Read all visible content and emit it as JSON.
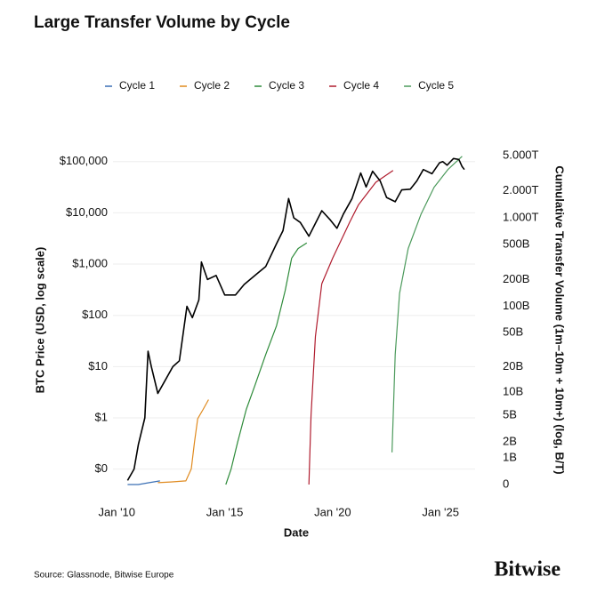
{
  "chart_data": {
    "type": "line",
    "title": "Large Transfer Volume by Cycle",
    "xlabel": "Date",
    "ylabel": "BTC Price (USD, log scale)",
    "y2label": "Cumulative Transfer Volume (1m–10m + 10m+) (log, B/T)",
    "source": "Source: Glassnode, Bitwise Europe",
    "brand": "Bitwise",
    "yscale": "log",
    "y2scale": "log1p",
    "grid": true,
    "legend": "top",
    "xlim": [
      2009,
      2026.6
    ],
    "xticks": [
      {
        "value": 2010,
        "label": "Jan '10"
      },
      {
        "value": 2015,
        "label": "Jan '15"
      },
      {
        "value": 2020,
        "label": "Jan '20"
      },
      {
        "value": 2025,
        "label": "Jan '25"
      }
    ],
    "ylim": [
      0.05,
      160000
    ],
    "yticks": [
      {
        "value": 0.1,
        "label": "$0"
      },
      {
        "value": 1,
        "label": "$1"
      },
      {
        "value": 10,
        "label": "$10"
      },
      {
        "value": 100,
        "label": "$100"
      },
      {
        "value": 1000,
        "label": "$1,000"
      },
      {
        "value": 10000,
        "label": "$10,000"
      },
      {
        "value": 100000,
        "label": "$100,000"
      }
    ],
    "y2lim": [
      0,
      5600
    ],
    "y2ticks": [
      0,
      {
        "value": 1,
        "label": "1B"
      },
      {
        "value": 2,
        "label": "2B"
      },
      {
        "value": 5,
        "label": "5B"
      },
      {
        "value": 10,
        "label": "10B"
      },
      {
        "value": 20,
        "label": "20B"
      },
      {
        "value": 50,
        "label": "50B"
      },
      {
        "value": 100,
        "label": "100B"
      },
      {
        "value": 200,
        "label": "200B"
      },
      {
        "value": 500,
        "label": "500B"
      },
      {
        "value": 1000,
        "label": "1.000T"
      },
      {
        "value": 2000,
        "label": "2.000T"
      },
      {
        "value": 5000,
        "label": "5.000T"
      }
    ],
    "price": {
      "color": "#000000",
      "x": [
        2010.5,
        2010.8,
        2011.0,
        2011.3,
        2011.45,
        2011.6,
        2011.9,
        2012.2,
        2012.6,
        2012.9,
        2013.25,
        2013.5,
        2013.8,
        2013.92,
        2014.2,
        2014.6,
        2015.0,
        2015.5,
        2015.9,
        2016.5,
        2016.9,
        2017.4,
        2017.7,
        2017.96,
        2018.2,
        2018.5,
        2018.9,
        2019.5,
        2019.9,
        2020.2,
        2020.5,
        2020.9,
        2021.3,
        2021.55,
        2021.85,
        2022.2,
        2022.5,
        2022.9,
        2023.2,
        2023.6,
        2023.9,
        2024.2,
        2024.6,
        2024.95,
        2025.1,
        2025.3,
        2025.6,
        2025.85,
        2026.0,
        2026.1
      ],
      "values": [
        0.06,
        0.1,
        0.3,
        1,
        20,
        10,
        3,
        5,
        10,
        13,
        150,
        90,
        200,
        1100,
        500,
        600,
        250,
        250,
        400,
        650,
        900,
        2500,
        4500,
        19000,
        8000,
        6500,
        3500,
        11000,
        7200,
        5000,
        9500,
        19000,
        60000,
        32000,
        65000,
        42000,
        20000,
        16500,
        28000,
        29000,
        42000,
        70000,
        58000,
        95000,
        100000,
        85000,
        115000,
        110000,
        80000,
        70000
      ]
    },
    "series": [
      {
        "name": "Cycle 1",
        "color": "#3a6fb5",
        "axis": "y2",
        "x": [
          2010.5,
          2011.0,
          2011.5,
          2012.0
        ],
        "values": [
          0,
          0,
          0.05,
          0.1
        ]
      },
      {
        "name": "Cycle 2",
        "color": "#e08a1e",
        "axis": "y2",
        "x": [
          2011.9,
          2012.5,
          2013.2,
          2013.45,
          2013.6,
          2013.75,
          2014.0,
          2014.25
        ],
        "values": [
          0.05,
          0.07,
          0.1,
          0.5,
          2,
          4.5,
          6,
          8
        ]
      },
      {
        "name": "Cycle 3",
        "color": "#2e8b3a",
        "axis": "y2",
        "x": [
          2015.05,
          2015.3,
          2015.6,
          2016.0,
          2016.4,
          2016.9,
          2017.4,
          2017.8,
          2018.1,
          2018.4,
          2018.8
        ],
        "values": [
          0,
          0.5,
          2,
          6,
          12,
          28,
          60,
          150,
          350,
          450,
          520
        ]
      },
      {
        "name": "Cycle 4",
        "color": "#b01c2e",
        "axis": "y2",
        "x": [
          2018.9,
          2019.0,
          2019.2,
          2019.5,
          2020.0,
          2020.8,
          2021.2,
          2022.0,
          2022.8
        ],
        "values": [
          0,
          5,
          45,
          180,
          350,
          900,
          1400,
          2500,
          3400
        ]
      },
      {
        "name": "Cycle 5",
        "color": "#4c9a5c",
        "axis": "y2",
        "x": [
          2022.75,
          2022.9,
          2023.1,
          2023.5,
          2024.1,
          2024.7,
          2025.35,
          2026.0
        ],
        "values": [
          1.3,
          28,
          140,
          450,
          1100,
          2200,
          3500,
          4900
        ]
      }
    ]
  }
}
